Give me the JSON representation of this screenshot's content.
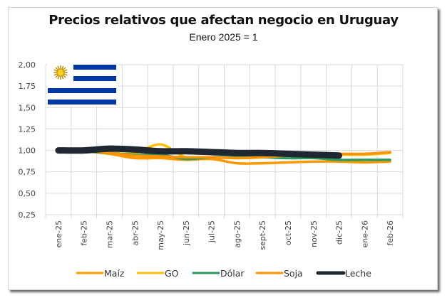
{
  "chart_data": {
    "type": "line",
    "title": "Precios relativos que afectan negocio en Uruguay",
    "subtitle": "Enero 2025 = 1",
    "xlabel": "",
    "ylabel": "",
    "ylim": [
      0.25,
      2.0
    ],
    "yticks": [
      0.25,
      0.5,
      0.75,
      1.0,
      1.25,
      1.5,
      1.75,
      2.0
    ],
    "ytick_labels": [
      "0,25",
      "0,50",
      "0,75",
      "1,00",
      "1,25",
      "1,50",
      "1,75",
      "2,00"
    ],
    "grid": true,
    "legend_position": "bottom",
    "categories": [
      "ene-25",
      "feb-25",
      "mar-25",
      "abr-25",
      "may-25",
      "jun-25",
      "jul-25",
      "ago-25",
      "sept-25",
      "oct-25",
      "nov-25",
      "dic-25",
      "ene-26",
      "feb-26"
    ],
    "series": [
      {
        "name": "Maíz",
        "color": "#FF9900",
        "values": [
          1.0,
          0.99,
          0.96,
          0.91,
          0.91,
          0.89,
          0.9,
          0.85,
          0.85,
          0.86,
          0.87,
          0.87,
          0.86,
          0.87
        ]
      },
      {
        "name": "GO",
        "color": "#FFC000",
        "values": [
          1.0,
          1.0,
          0.97,
          0.97,
          1.07,
          0.92,
          0.92,
          0.91,
          0.92,
          0.93,
          0.94,
          0.95,
          0.95,
          0.97
        ]
      },
      {
        "name": "Dólar",
        "color": "#2E9A5C",
        "values": [
          1.0,
          0.99,
          0.97,
          0.95,
          0.95,
          0.9,
          0.92,
          0.92,
          0.92,
          0.91,
          0.91,
          0.89,
          0.89,
          0.89
        ]
      },
      {
        "name": "Soja",
        "color": "#FF9200",
        "values": [
          1.0,
          1.0,
          0.97,
          0.94,
          0.93,
          0.92,
          0.92,
          0.91,
          0.92,
          0.94,
          0.96,
          0.96,
          0.96,
          0.98
        ]
      },
      {
        "name": "Leche",
        "color": "#1F2733",
        "values": [
          1.0,
          1.0,
          1.02,
          1.01,
          0.99,
          0.99,
          0.98,
          0.97,
          0.97,
          0.96,
          0.95,
          0.94,
          null,
          null
        ]
      }
    ]
  },
  "image": {
    "flag": "Uruguay flag"
  }
}
